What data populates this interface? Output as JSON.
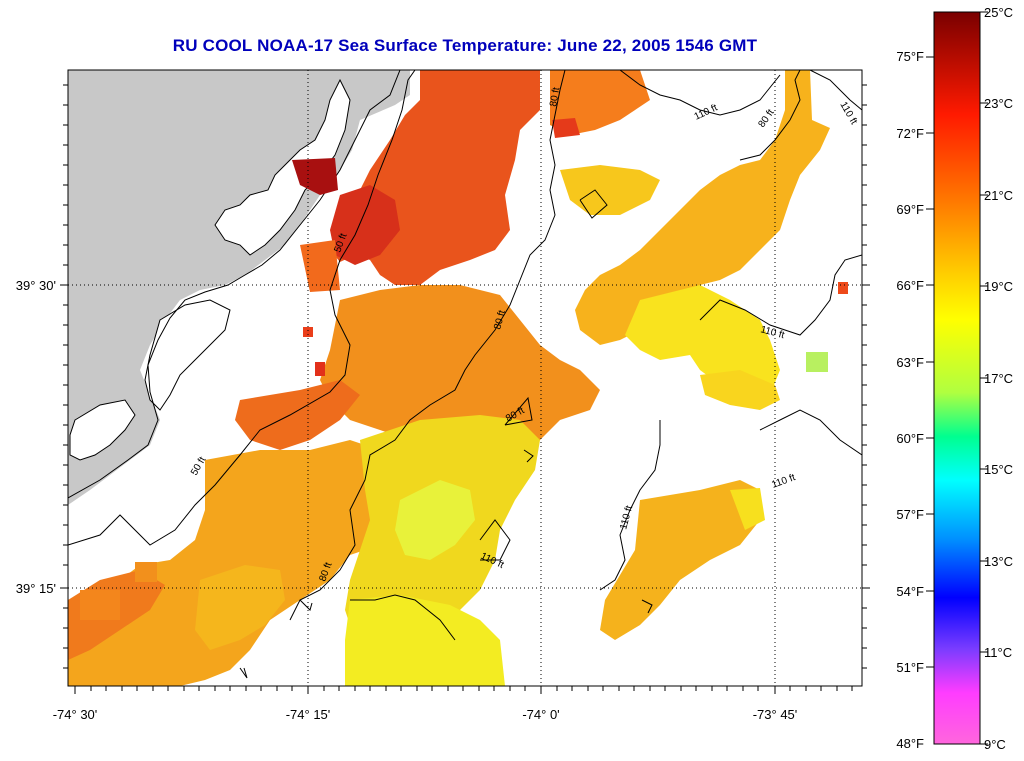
{
  "title": "RU COOL  NOAA-17  Sea Surface Temperature:  June 22, 2005 1546 GMT",
  "axes": {
    "x_ticks": [
      "-74° 30'",
      "-74° 15'",
      "-74° 0'",
      "-73° 45'"
    ],
    "y_ticks": [
      "39° 30'",
      "39° 15'"
    ]
  },
  "contours": [
    {
      "label": "50 ft"
    },
    {
      "label": "50 ft"
    },
    {
      "label": "80 ft"
    },
    {
      "label": "80 ft"
    },
    {
      "label": "80 ft"
    },
    {
      "label": "80 ft"
    },
    {
      "label": "80 ft"
    },
    {
      "label": "110 ft"
    },
    {
      "label": "110 ft"
    },
    {
      "label": "110 ft"
    },
    {
      "label": "110 ft"
    },
    {
      "label": "110 ft"
    },
    {
      "label": "110 ft"
    }
  ],
  "colorbar": {
    "fahrenheit": [
      "75°F",
      "72°F",
      "69°F",
      "66°F",
      "63°F",
      "60°F",
      "57°F",
      "54°F",
      "51°F",
      "48°F"
    ],
    "celsius": [
      "25°C",
      "23°C",
      "21°C",
      "19°C",
      "17°C",
      "15°C",
      "13°C",
      "11°C",
      "9°C"
    ],
    "stops": [
      "#8b0000",
      "#ff1a00",
      "#ff7a00",
      "#ffd000",
      "#ffff00",
      "#b0ff40",
      "#00ffa0",
      "#00ffff",
      "#0066ff",
      "#0000ff",
      "#7a3cff",
      "#ff3cff",
      "#ff66dd"
    ]
  },
  "colors": {
    "land": "#c8c8c8",
    "sst_warm": "#e8401a",
    "sst_mid": "#f7a21a",
    "sst_cool": "#f2f21e"
  }
}
